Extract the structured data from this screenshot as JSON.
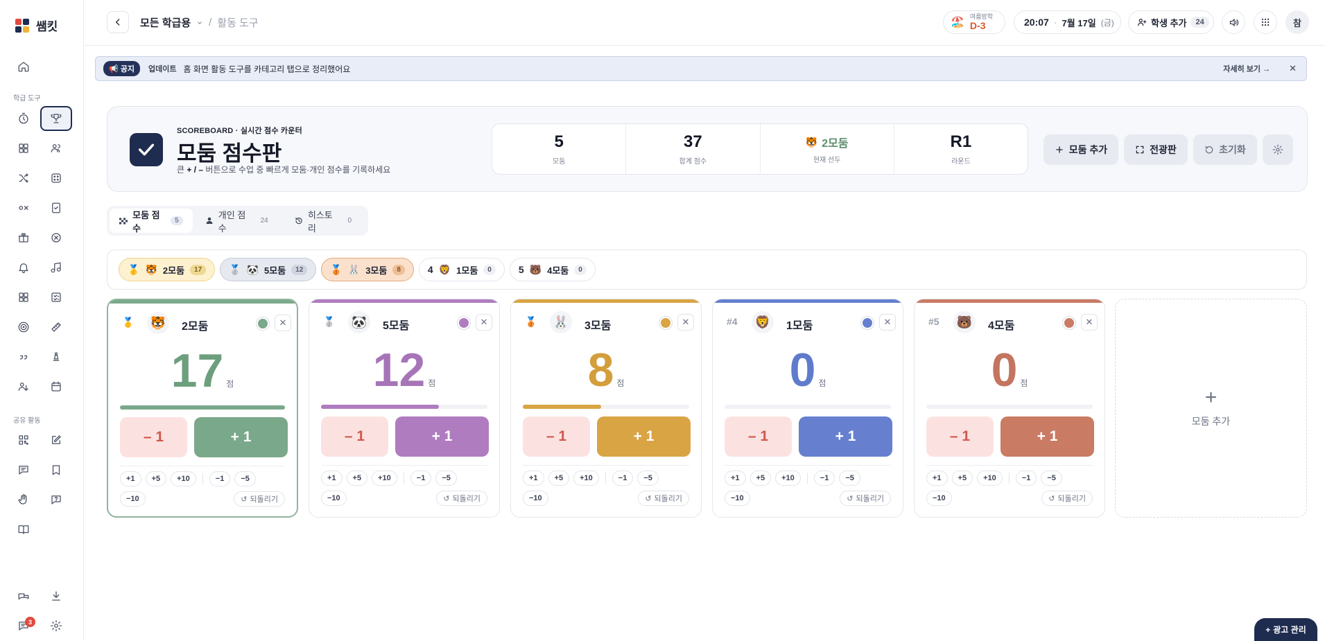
{
  "app": {
    "name": "쌤킷"
  },
  "sidebar": {
    "section_tools": "학급 도구",
    "section_share": "공유 활동",
    "chat_badge": "3"
  },
  "topbar": {
    "breadcrumb_class": "모든 학급용",
    "breadcrumb_sep": "/",
    "breadcrumb_page": "활동 도구",
    "dday_label": "여름방학",
    "dday_value": "D-3",
    "time": "20:07",
    "dot": "·",
    "date": "7월 17일",
    "weekday": "(금)",
    "add_student_label": "학생 추가",
    "student_count": "24",
    "avatar_initial": "참"
  },
  "notice": {
    "tag": "📢 공지",
    "category": "업데이트",
    "message": "홈 화면 활동 도구를 카테고리 탭으로 정리했어요",
    "more": "자세히 보기 →",
    "close": "✕"
  },
  "header": {
    "eyebrow": "SCOREBOARD · 실시간 점수 카운터",
    "title": "모둠 점수판",
    "sub_prefix": "큰",
    "sub_bold": "+ / –",
    "sub_suffix": "버튼으로 수업 중 빠르게 모둠·개인 점수를 기록하세요",
    "stats": [
      {
        "value": "5",
        "label": "모둠"
      },
      {
        "value": "37",
        "label": "합계 점수"
      },
      {
        "value": "2모둠",
        "emoji": "🐯",
        "label": "현재 선두"
      },
      {
        "value": "R1",
        "label": "라운드"
      }
    ],
    "btn_add_team": "모둠 추가",
    "btn_fullscreen": "전광판",
    "btn_reset": "초기화"
  },
  "tabs": [
    {
      "label": "모둠 점수",
      "count": "5",
      "icon": "checker-icon"
    },
    {
      "label": "개인 점수",
      "count": "24",
      "icon": "person-icon"
    },
    {
      "label": "히스토리",
      "count": "0",
      "icon": "history-icon"
    }
  ],
  "ranking": [
    {
      "medal": "🥇",
      "emoji": "🐯",
      "name": "2모둠",
      "score": "17"
    },
    {
      "medal": "🥈",
      "emoji": "🐼",
      "name": "5모둠",
      "score": "12"
    },
    {
      "medal": "🥉",
      "emoji": "🐰",
      "name": "3모둠",
      "score": "8"
    },
    {
      "num": "4",
      "emoji": "🦁",
      "name": "1모둠",
      "score": "0"
    },
    {
      "num": "5",
      "emoji": "🐻",
      "name": "4모둠",
      "score": "0"
    }
  ],
  "teams": [
    {
      "rank": "🥇",
      "emoji": "🐯",
      "name": "2모둠",
      "score": "17",
      "progress": 1.0,
      "color": "#7aa88a",
      "score_color": "#6d9f7d"
    },
    {
      "rank": "🥈",
      "emoji": "🐼",
      "name": "5모둠",
      "score": "12",
      "progress": 0.71,
      "color": "#b07cc0",
      "score_color": "#a774b8"
    },
    {
      "rank": "🥉",
      "emoji": "🐰",
      "name": "3모둠",
      "score": "8",
      "progress": 0.47,
      "color": "#d9a444",
      "score_color": "#d49e3c"
    },
    {
      "rank": "#4",
      "emoji": "🦁",
      "name": "1모둠",
      "score": "0",
      "progress": 0,
      "color": "#6680cf",
      "score_color": "#5f7bcc"
    },
    {
      "rank": "#5",
      "emoji": "🐻",
      "name": "4모둠",
      "score": "0",
      "progress": 0,
      "color": "#c97b64",
      "score_color": "#c47560"
    }
  ],
  "card_labels": {
    "minus": "– 1",
    "plus": "+ 1",
    "unit": "점",
    "quick": [
      "+1",
      "+5",
      "+10",
      "−1",
      "−5",
      "−10"
    ],
    "undo": "되돌리기"
  },
  "add_card": {
    "label": "모둠 추가"
  },
  "ad_button": {
    "label": "광고 관리"
  }
}
